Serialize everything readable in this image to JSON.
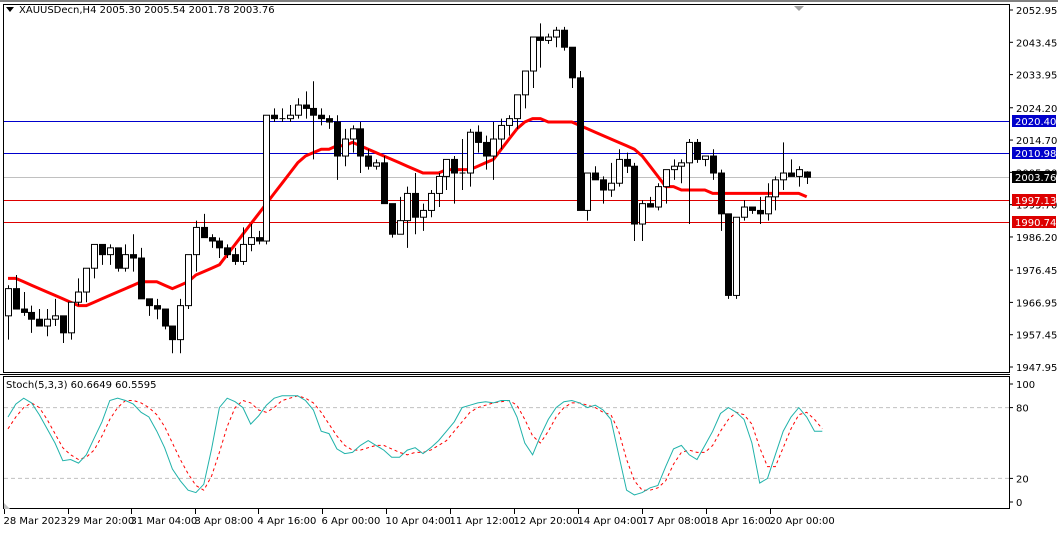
{
  "header": {
    "symbol": "XAUUSDecn,H4",
    "open": "2005.30",
    "high": "2005.54",
    "low": "2001.78",
    "close": "2003.76",
    "text": "XAUUSDecn,H4  2005.30 2005.54 2001.78 2003.76"
  },
  "indicator": {
    "name": "Stoch(5,3,3)",
    "main": "60.6649",
    "signal": "60.5595",
    "text": "Stoch(5,3,3) 60.6649 60.5595",
    "levels": [
      "100",
      "80",
      "20",
      "0"
    ]
  },
  "colors": {
    "bg": "#ffffff",
    "bull_body": "#ffffff",
    "bear_body": "#000000",
    "ma": "#ff0000",
    "resistance": "#0000cc",
    "support": "#dd0000",
    "bid_line": "#c0c0c0",
    "stoch_main": "#20b2aa",
    "stoch_signal": "#ff0000",
    "level_line": "#c0c0c0"
  },
  "price_axis": {
    "ticks": [
      "2052.95",
      "2043.45",
      "2033.95",
      "2024.20",
      "2014.70",
      "2005.20",
      "1995.70",
      "1986.20",
      "1976.45",
      "1966.95",
      "1957.45",
      "1947.95"
    ],
    "max": 2052.95,
    "min": 1947.95
  },
  "levels": [
    {
      "price": 2020.4,
      "label": "2020.40",
      "type": "resistance"
    },
    {
      "price": 2010.98,
      "label": "2010.98",
      "type": "resistance"
    },
    {
      "price": 2003.76,
      "label": "2003.76",
      "type": "bid"
    },
    {
      "price": 1997.13,
      "label": "1997.13",
      "type": "support"
    },
    {
      "price": 1990.74,
      "label": "1990.74",
      "type": "support"
    }
  ],
  "time_axis": [
    "28 Mar 2023",
    "29 Mar 20:00",
    "31 Mar 04:00",
    "3 Apr 08:00",
    "4 Apr 16:00",
    "6 Apr 00:00",
    "10 Apr 04:00",
    "11 Apr 12:00",
    "12 Apr 20:00",
    "14 Apr 04:00",
    "17 Apr 08:00",
    "18 Apr 16:00",
    "20 Apr 00:00"
  ],
  "chart_data": {
    "type": "candlestick",
    "title": "XAUUSDecn,H4",
    "ylim": [
      1947.95,
      2052.95
    ],
    "x_ticks": [
      "28 Mar 2023",
      "29 Mar 20:00",
      "31 Mar 04:00",
      "3 Apr 08:00",
      "4 Apr 16:00",
      "6 Apr 00:00",
      "10 Apr 04:00",
      "11 Apr 12:00",
      "12 Apr 20:00",
      "14 Apr 04:00",
      "17 Apr 08:00",
      "18 Apr 16:00",
      "20 Apr 00:00"
    ],
    "horizontal_levels": [
      2020.4,
      2010.98,
      1997.13,
      1990.74
    ],
    "candles": [
      [
        1963,
        1972,
        1956,
        1971
      ],
      [
        1971,
        1975,
        1966,
        1965
      ],
      [
        1965,
        1970,
        1963,
        1964
      ],
      [
        1964,
        1966,
        1958,
        1962
      ],
      [
        1962,
        1965,
        1961,
        1960
      ],
      [
        1960,
        1965,
        1957,
        1962
      ],
      [
        1962,
        1968,
        1960,
        1963
      ],
      [
        1963,
        1963,
        1955,
        1958
      ],
      [
        1958,
        1966,
        1956,
        1967
      ],
      [
        1967,
        1974,
        1966,
        1970
      ],
      [
        1970,
        1977,
        1967,
        1977
      ],
      [
        1977,
        1984,
        1974,
        1984
      ],
      [
        1984,
        1984,
        1978,
        1981
      ],
      [
        1981,
        1984,
        1978,
        1983
      ],
      [
        1983,
        1983,
        1976,
        1977
      ],
      [
        1977,
        1984,
        1976,
        1981
      ],
      [
        1981,
        1987,
        1976,
        1980
      ],
      [
        1980,
        1983,
        1972,
        1968
      ],
      [
        1968,
        1968,
        1963,
        1966
      ],
      [
        1966,
        1968,
        1962,
        1965
      ],
      [
        1965,
        1965,
        1959,
        1960
      ],
      [
        1960,
        1960,
        1952,
        1956
      ],
      [
        1956,
        1968,
        1952,
        1966
      ],
      [
        1966,
        1980,
        1965,
        1981
      ],
      [
        1981,
        1991,
        1976,
        1989
      ],
      [
        1989,
        1993,
        1986,
        1986
      ],
      [
        1986,
        1987,
        1983,
        1985
      ],
      [
        1985,
        1986,
        1980,
        1983
      ],
      [
        1983,
        1984,
        1980,
        1981
      ],
      [
        1981,
        1983,
        1978,
        1979
      ],
      [
        1979,
        1989,
        1978,
        1984
      ],
      [
        1984,
        1990,
        1982,
        1986
      ],
      [
        1986,
        1988,
        1984,
        1985
      ],
      [
        1985,
        2022,
        1984,
        2022
      ],
      [
        2022,
        2024,
        2020,
        2021
      ],
      [
        2021,
        2024,
        2020,
        2021
      ],
      [
        2021,
        2025,
        2020,
        2022
      ],
      [
        2022,
        2027,
        2021,
        2025
      ],
      [
        2025,
        2029,
        2021,
        2024
      ],
      [
        2024,
        2032,
        2009,
        2022
      ],
      [
        2022,
        2024,
        2019,
        2021
      ],
      [
        2021,
        2022,
        2018,
        2020
      ],
      [
        2020,
        2022,
        2003,
        2010
      ],
      [
        2010,
        2018,
        2007,
        2015
      ],
      [
        2015,
        2019,
        2011,
        2018
      ],
      [
        2018,
        2020,
        2005,
        2010
      ],
      [
        2010,
        2012,
        2006,
        2007
      ],
      [
        2007,
        2009,
        2006,
        2008
      ],
      [
        2008,
        2010,
        1997,
        1996
      ],
      [
        1996,
        1994,
        1986,
        1987
      ],
      [
        1987,
        1998,
        1987,
        1991
      ],
      [
        1991,
        2001,
        1983,
        1999
      ],
      [
        1999,
        2005,
        1987,
        1992
      ],
      [
        1992,
        1996,
        1988,
        1994
      ],
      [
        1994,
        2000,
        1992,
        1999
      ],
      [
        1999,
        2005,
        1995,
        2004
      ],
      [
        2004,
        2008,
        2000,
        2009
      ],
      [
        2009,
        2010,
        1996,
        2005
      ],
      [
        2005,
        2015,
        2000,
        2005
      ],
      [
        2005,
        2018,
        2001,
        2017
      ],
      [
        2017,
        2019,
        2011,
        2014
      ],
      [
        2014,
        2016,
        2006,
        2010
      ],
      [
        2010,
        2020,
        2003,
        2015
      ],
      [
        2015,
        2021,
        2012,
        2019
      ],
      [
        2019,
        2022,
        2016,
        2021
      ],
      [
        2021,
        2026,
        2018,
        2028
      ],
      [
        2028,
        2034,
        2024,
        2035
      ],
      [
        2035,
        2040,
        2030,
        2045
      ],
      [
        2045,
        2049,
        2036,
        2044
      ],
      [
        2044,
        2046,
        2043,
        2045
      ],
      [
        2045,
        2048,
        2042,
        2047
      ],
      [
        2047,
        2048,
        2041,
        2042
      ],
      [
        2042,
        2040,
        2030,
        2033
      ],
      [
        2033,
        2035,
        1996,
        1994
      ],
      [
        1994,
        2003,
        1991,
        2005
      ],
      [
        2005,
        2007,
        2004,
        2003
      ],
      [
        2003,
        2004,
        1996,
        2000
      ],
      [
        2000,
        2008,
        1998,
        2002
      ],
      [
        2002,
        2012,
        2001,
        2009
      ],
      [
        2009,
        2011,
        2005,
        2007
      ],
      [
        2007,
        2008,
        1985,
        1990
      ],
      [
        1990,
        1997,
        1985,
        1996
      ],
      [
        1996,
        1998,
        1995,
        1995
      ],
      [
        1995,
        2002,
        1994,
        2001
      ],
      [
        2001,
        2005,
        1996,
        2006
      ],
      [
        2006,
        2009,
        2003,
        2007
      ],
      [
        2007,
        2009,
        2002,
        2008
      ],
      [
        2008,
        2015,
        1990,
        2014
      ],
      [
        2014,
        2015,
        2008,
        2009
      ],
      [
        2009,
        2010,
        2007,
        2010
      ],
      [
        2010,
        2012,
        2003,
        2005
      ],
      [
        2005,
        2006,
        1988,
        1993
      ],
      [
        1993,
        1992,
        1968,
        1969
      ],
      [
        1969,
        1992,
        1968,
        1992
      ],
      [
        1992,
        1997,
        1991,
        1995
      ],
      [
        1995,
        1995,
        1993,
        1994
      ],
      [
        1994,
        1998,
        1990,
        1993
      ],
      [
        1993,
        2002,
        1991,
        1998
      ],
      [
        1998,
        2004,
        1994,
        2003
      ],
      [
        2003,
        2014,
        2000,
        2005
      ],
      [
        2005,
        2009,
        2004,
        2004
      ],
      [
        2004,
        2007,
        2001,
        2006
      ],
      [
        2005.3,
        2005.54,
        2001.78,
        2003.76
      ]
    ],
    "ma_values": [
      1974,
      1974,
      1973,
      1972,
      1971,
      1970,
      1969,
      1968,
      1967,
      1966,
      1966,
      1967,
      1968,
      1969,
      1970,
      1971,
      1972,
      1973,
      1973,
      1973,
      1972,
      1971,
      1972,
      1973,
      1975,
      1976,
      1977,
      1978,
      1981,
      1984,
      1987,
      1990,
      1993,
      1996,
      1999,
      2002,
      2005,
      2008,
      2010,
      2011,
      2012,
      2012,
      2013,
      2013,
      2014,
      2013,
      2012,
      2011,
      2010,
      2009,
      2008,
      2007,
      2006,
      2005,
      2005,
      2005,
      2006,
      2006,
      2006,
      2006,
      2007,
      2008,
      2009,
      2012,
      2015,
      2018,
      2020,
      2021,
      2021,
      2020,
      2020,
      2020,
      2020,
      2019,
      2018,
      2017,
      2016,
      2015,
      2014,
      2013,
      2012,
      2010,
      2007,
      2004,
      2001,
      2001,
      2000,
      2000,
      2000,
      2000,
      1999,
      1999,
      1999,
      1999,
      1999,
      1999,
      1999,
      1999,
      1999,
      1999,
      1999,
      1999,
      1998
    ],
    "stoch_main": [
      72,
      83,
      88,
      84,
      74,
      62,
      50,
      35,
      36,
      33,
      40,
      54,
      68,
      86,
      88,
      86,
      83,
      76,
      72,
      60,
      46,
      28,
      18,
      10,
      8,
      15,
      45,
      80,
      88,
      85,
      80,
      66,
      73,
      82,
      88,
      90,
      90,
      90,
      86,
      78,
      60,
      58,
      45,
      41,
      42,
      48,
      52,
      48,
      44,
      38,
      38,
      44,
      46,
      41,
      46,
      52,
      60,
      68,
      80,
      82,
      84,
      85,
      84,
      86,
      86,
      72,
      50,
      40,
      56,
      70,
      80,
      85,
      86,
      84,
      80,
      82,
      78,
      70,
      40,
      10,
      6,
      8,
      12,
      14,
      30,
      45,
      48,
      40,
      36,
      48,
      60,
      75,
      80,
      76,
      70,
      50,
      16,
      20,
      40,
      60,
      72,
      80,
      72,
      60,
      60
    ],
    "stoch_signal": [
      62,
      72,
      80,
      84,
      80,
      70,
      58,
      46,
      40,
      36,
      38,
      44,
      56,
      70,
      80,
      86,
      86,
      84,
      80,
      74,
      64,
      50,
      36,
      24,
      14,
      10,
      22,
      42,
      64,
      80,
      86,
      84,
      78,
      76,
      80,
      86,
      88,
      90,
      88,
      84,
      76,
      66,
      56,
      48,
      44,
      44,
      46,
      48,
      48,
      45,
      42,
      40,
      42,
      42,
      44,
      48,
      52,
      60,
      68,
      76,
      80,
      82,
      84,
      85,
      86,
      82,
      70,
      56,
      50,
      60,
      72,
      80,
      84,
      84,
      82,
      80,
      76,
      74,
      60,
      36,
      18,
      10,
      10,
      12,
      18,
      32,
      42,
      44,
      42,
      42,
      48,
      60,
      70,
      76,
      74,
      66,
      46,
      30,
      30,
      46,
      62,
      74,
      76,
      70,
      62
    ]
  }
}
